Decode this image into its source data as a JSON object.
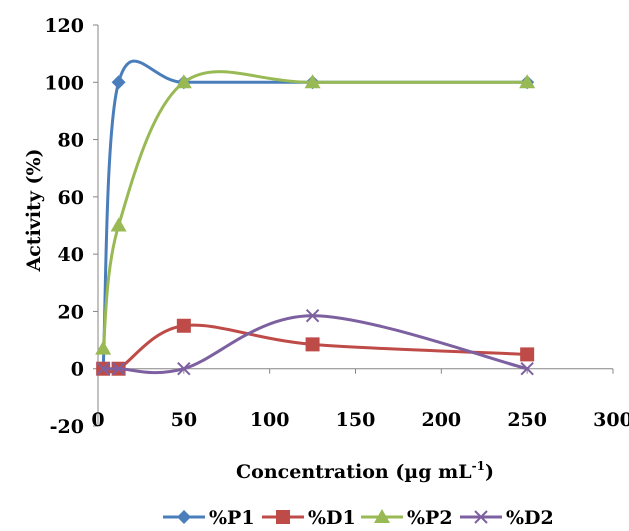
{
  "chart_data": {
    "type": "scatter",
    "title": "",
    "xlabel": "Concentration (µg mL",
    "xlabel_sup": "-1",
    "xlabel_suffix": ")",
    "ylabel": "Activity (%)",
    "xlim": [
      0,
      300
    ],
    "ylim": [
      -20,
      120
    ],
    "xticks": [
      0,
      50,
      100,
      150,
      200,
      250,
      300
    ],
    "yticks": [
      -20,
      0,
      20,
      40,
      60,
      80,
      100,
      120
    ],
    "grid": false,
    "smooth": true,
    "legend_position": "bottom",
    "series": [
      {
        "name": "%P1",
        "color": "#4A7EBB",
        "marker": "diamond",
        "x": [
          3,
          12,
          50,
          125,
          250
        ],
        "y": [
          0,
          100,
          100,
          100,
          100
        ]
      },
      {
        "name": "%D1",
        "color": "#BE4B48",
        "marker": "square",
        "x": [
          3,
          12,
          50,
          125,
          250
        ],
        "y": [
          0,
          0,
          15,
          8.5,
          5
        ]
      },
      {
        "name": "%P2",
        "color": "#98B954",
        "marker": "triangle",
        "x": [
          3,
          12,
          50,
          125,
          250
        ],
        "y": [
          7,
          50,
          100,
          100,
          100
        ]
      },
      {
        "name": "%D2",
        "color": "#7D60A0",
        "marker": "x",
        "x": [
          3,
          12,
          50,
          125,
          250
        ],
        "y": [
          0,
          0,
          0,
          18.5,
          0
        ]
      }
    ]
  }
}
